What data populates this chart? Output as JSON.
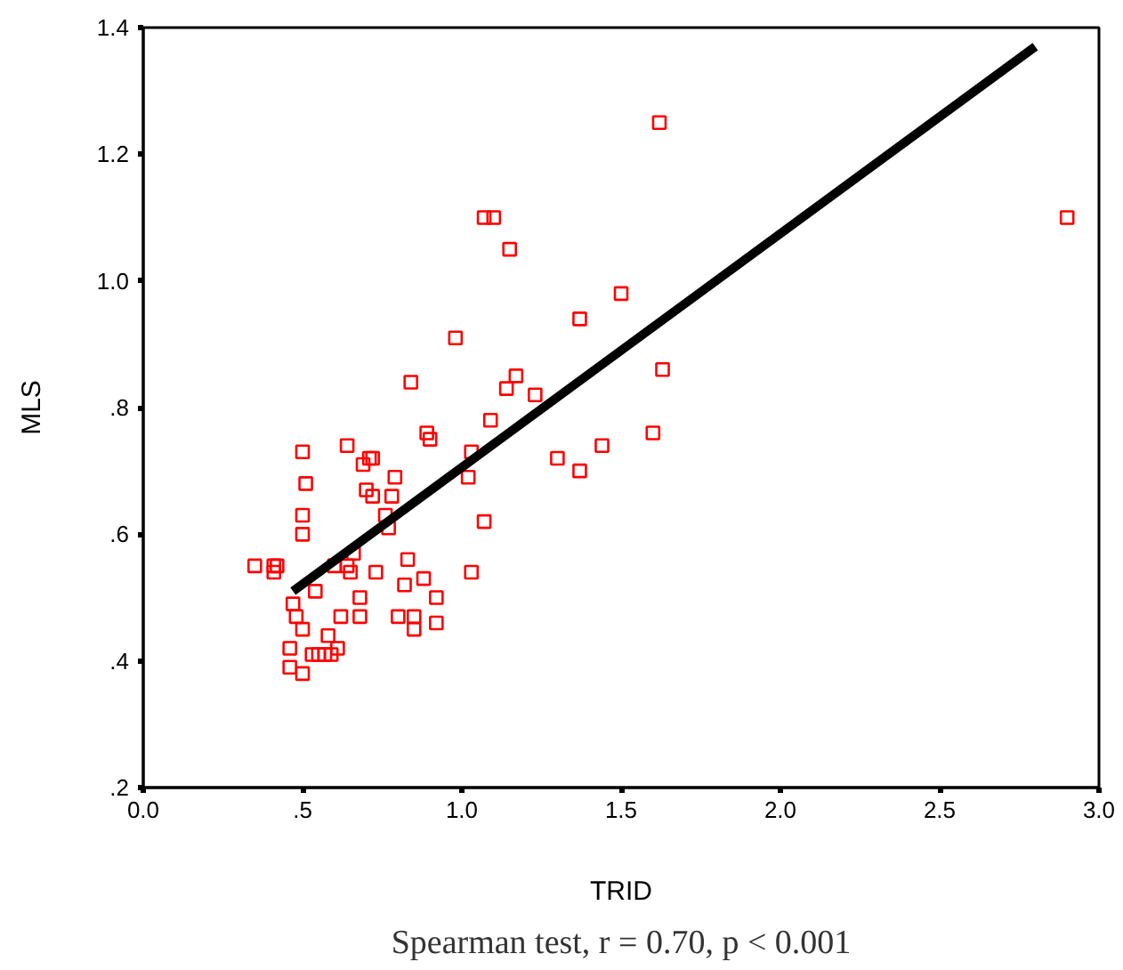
{
  "chart_data": {
    "type": "scatter",
    "xlabel": "TRID",
    "ylabel": "MLS",
    "annotations": [
      "Spearman test, r = 0.70, p < 0.001"
    ],
    "xlim": [
      0,
      3
    ],
    "ylim": [
      0.2,
      1.4
    ],
    "xticks": [
      {
        "value": 0,
        "label": "0.0"
      },
      {
        "value": 0.5,
        "label": ".5"
      },
      {
        "value": 1,
        "label": "1.0"
      },
      {
        "value": 1.5,
        "label": "1.5"
      },
      {
        "value": 2,
        "label": "2.0"
      },
      {
        "value": 2.5,
        "label": "2.5"
      },
      {
        "value": 3,
        "label": "3.0"
      }
    ],
    "yticks": [
      {
        "value": 0.2,
        "label": ".2"
      },
      {
        "value": 0.4,
        "label": ".4"
      },
      {
        "value": 0.6,
        "label": ".6"
      },
      {
        "value": 0.8,
        "label": ".8"
      },
      {
        "value": 1.0,
        "label": "1.0"
      },
      {
        "value": 1.2,
        "label": "1.2"
      },
      {
        "value": 1.4,
        "label": "1.4"
      }
    ],
    "grid": false,
    "series": [
      {
        "marker": "square",
        "color": "#ff0000",
        "x": [
          0.35,
          0.41,
          0.41,
          0.42,
          0.46,
          0.46,
          0.47,
          0.48,
          0.5,
          0.5,
          0.5,
          0.5,
          0.5,
          0.51,
          0.53,
          0.54,
          0.55,
          0.57,
          0.58,
          0.59,
          0.6,
          0.61,
          0.62,
          0.64,
          0.64,
          0.65,
          0.66,
          0.68,
          0.68,
          0.69,
          0.7,
          0.71,
          0.72,
          0.72,
          0.73,
          0.76,
          0.77,
          0.78,
          0.79,
          0.8,
          0.82,
          0.83,
          0.84,
          0.85,
          0.85,
          0.88,
          0.89,
          0.9,
          0.92,
          0.92,
          0.98,
          1.02,
          1.03,
          1.03,
          1.07,
          1.07,
          1.09,
          1.1,
          1.14,
          1.15,
          1.17,
          1.23,
          1.3,
          1.37,
          1.37,
          1.44,
          1.5,
          1.6,
          1.62,
          1.63,
          2.9
        ],
        "values": [
          0.55,
          0.54,
          0.55,
          0.55,
          0.42,
          0.39,
          0.49,
          0.47,
          0.38,
          0.45,
          0.6,
          0.63,
          0.73,
          0.68,
          0.41,
          0.51,
          0.41,
          0.41,
          0.44,
          0.41,
          0.55,
          0.42,
          0.47,
          0.74,
          0.55,
          0.54,
          0.57,
          0.5,
          0.47,
          0.71,
          0.67,
          0.72,
          0.72,
          0.66,
          0.54,
          0.63,
          0.61,
          0.66,
          0.69,
          0.47,
          0.52,
          0.56,
          0.84,
          0.47,
          0.45,
          0.53,
          0.76,
          0.75,
          0.5,
          0.46,
          0.91,
          0.69,
          0.73,
          0.54,
          1.1,
          0.62,
          0.78,
          1.1,
          0.83,
          1.05,
          0.85,
          0.82,
          0.72,
          0.94,
          0.7,
          0.74,
          0.98,
          0.76,
          1.25,
          0.86,
          1.1
        ]
      },
      {
        "type": "line",
        "color": "#000000",
        "x": [
          0.47,
          2.8
        ],
        "values": [
          0.51,
          1.37
        ]
      }
    ]
  }
}
